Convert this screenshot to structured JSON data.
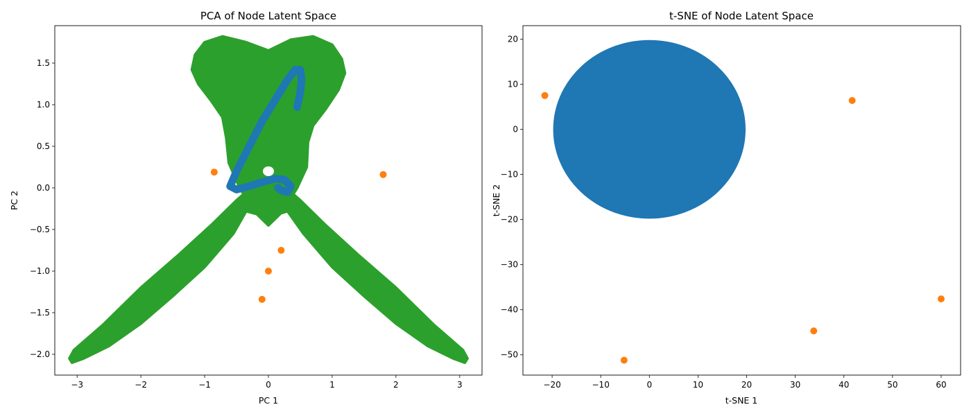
{
  "chart_data": [
    {
      "type": "scatter",
      "title": "PCA of Node Latent Space",
      "xlabel": "PC 1",
      "ylabel": "PC 2",
      "xlim": [
        -3.35,
        3.35
      ],
      "ylim": [
        -2.25,
        1.95
      ],
      "xticks": [
        -3,
        -2,
        -1,
        0,
        1,
        2,
        3
      ],
      "yticks": [
        -2.0,
        -1.5,
        -1.0,
        -0.5,
        0.0,
        0.5,
        1.0,
        1.5
      ],
      "xtick_labels": [
        "−3",
        "−2",
        "−1",
        "0",
        "1",
        "2",
        "3"
      ],
      "ytick_labels": [
        "−2.0",
        "−1.5",
        "−1.0",
        "−0.5",
        "0.0",
        "0.5",
        "1.0",
        "1.5"
      ],
      "grid": false,
      "series": [
        {
          "color": "#2ca02c",
          "marker": "dense-filled-region",
          "regions": {
            "upper_heart": [
              [
                0,
                1.65
              ],
              [
                0.35,
                1.78
              ],
              [
                0.7,
                1.82
              ],
              [
                1.0,
                1.72
              ],
              [
                1.15,
                1.55
              ],
              [
                1.2,
                1.38
              ],
              [
                1.1,
                1.18
              ],
              [
                0.9,
                0.95
              ],
              [
                0.7,
                0.75
              ],
              [
                0.62,
                0.55
              ],
              [
                0.6,
                0.25
              ],
              [
                0.45,
                0.0
              ],
              [
                0.2,
                -0.3
              ],
              [
                0,
                -0.45
              ],
              [
                -0.2,
                -0.3
              ],
              [
                -0.45,
                0.0
              ],
              [
                -0.62,
                0.3
              ],
              [
                -0.66,
                0.6
              ],
              [
                -0.72,
                0.85
              ],
              [
                -0.9,
                1.05
              ],
              [
                -1.1,
                1.25
              ],
              [
                -1.2,
                1.42
              ],
              [
                -1.15,
                1.6
              ],
              [
                -1.0,
                1.75
              ],
              [
                -0.72,
                1.82
              ],
              [
                -0.35,
                1.75
              ],
              [
                0,
                1.65
              ]
            ],
            "left_arm": [
              [
                -0.35,
                -0.28
              ],
              [
                -0.55,
                -0.55
              ],
              [
                -1.0,
                -0.95
              ],
              [
                -1.5,
                -1.3
              ],
              [
                -2.0,
                -1.63
              ],
              [
                -2.5,
                -1.9
              ],
              [
                -2.9,
                -2.05
              ],
              [
                -3.08,
                -2.1
              ],
              [
                -3.12,
                -2.05
              ],
              [
                -3.05,
                -1.95
              ],
              [
                -2.6,
                -1.65
              ],
              [
                -2.0,
                -1.2
              ],
              [
                -1.4,
                -0.8
              ],
              [
                -0.9,
                -0.45
              ],
              [
                -0.5,
                -0.15
              ],
              [
                -0.2,
                0.05
              ],
              [
                0,
                0.05
              ],
              [
                0.15,
                -0.05
              ],
              [
                0.0,
                -0.35
              ],
              [
                -0.35,
                -0.28
              ]
            ],
            "right_arm": [
              [
                0.3,
                -0.28
              ],
              [
                0.55,
                -0.55
              ],
              [
                1.0,
                -0.95
              ],
              [
                1.5,
                -1.3
              ],
              [
                2.0,
                -1.63
              ],
              [
                2.5,
                -1.9
              ],
              [
                2.9,
                -2.05
              ],
              [
                3.08,
                -2.1
              ],
              [
                3.12,
                -2.05
              ],
              [
                3.05,
                -1.95
              ],
              [
                2.6,
                -1.65
              ],
              [
                2.0,
                -1.2
              ],
              [
                1.4,
                -0.8
              ],
              [
                0.9,
                -0.45
              ],
              [
                0.5,
                -0.15
              ],
              [
                0.2,
                0.05
              ],
              [
                0,
                0.05
              ],
              [
                -0.15,
                -0.05
              ],
              [
                0.0,
                -0.35
              ],
              [
                0.3,
                -0.28
              ]
            ],
            "hole_center": [
              [
                0,
                0.2
              ],
              [
                0.1,
                0.22
              ]
            ]
          }
        },
        {
          "color": "#1f77b4",
          "marker": "curve",
          "points": [
            [
              0.45,
              0.97
            ],
            [
              0.5,
              1.15
            ],
            [
              0.52,
              1.3
            ],
            [
              0.5,
              1.42
            ],
            [
              0.42,
              1.42
            ],
            [
              0.3,
              1.3
            ],
            [
              0.1,
              1.05
            ],
            [
              -0.1,
              0.8
            ],
            [
              -0.3,
              0.5
            ],
            [
              -0.5,
              0.2
            ],
            [
              -0.6,
              0.02
            ],
            [
              -0.5,
              -0.02
            ],
            [
              -0.3,
              0.02
            ],
            [
              -0.1,
              0.07
            ],
            [
              0.1,
              0.11
            ],
            [
              0.25,
              0.1
            ],
            [
              0.35,
              0.02
            ],
            [
              0.3,
              -0.05
            ],
            [
              0.2,
              -0.03
            ],
            [
              0.15,
              0.0
            ]
          ]
        },
        {
          "color": "#ff7f0e",
          "marker": "o",
          "points": [
            [
              -0.85,
              0.19
            ],
            [
              1.8,
              0.16
            ],
            [
              0.2,
              -0.75
            ],
            [
              0.0,
              -1.0
            ],
            [
              -0.1,
              -1.34
            ]
          ]
        }
      ]
    },
    {
      "type": "scatter",
      "title": "t-SNE of Node Latent Space",
      "xlabel": "t-SNE 1",
      "ylabel": "t-SNE 2",
      "xlim": [
        -26.0,
        64.0
      ],
      "ylim": [
        -54.5,
        23.0
      ],
      "xticks": [
        -20,
        -10,
        0,
        10,
        20,
        30,
        40,
        50,
        60
      ],
      "yticks": [
        -50,
        -40,
        -30,
        -20,
        -10,
        0,
        10,
        20
      ],
      "xtick_labels": [
        "−20",
        "−10",
        "0",
        "10",
        "20",
        "30",
        "40",
        "50",
        "60"
      ],
      "ytick_labels": [
        "−50",
        "−40",
        "−30",
        "−20",
        "−10",
        "0",
        "10",
        "20"
      ],
      "grid": false,
      "series": [
        {
          "color": "#1f77b4",
          "marker": "dense-filled-disk",
          "center": [
            0,
            0
          ],
          "radius": 19.5
        },
        {
          "color": "#ff7f0e",
          "marker": "o",
          "points": [
            [
              -21.5,
              7.5
            ],
            [
              41.7,
              6.4
            ],
            [
              60.0,
              -37.6
            ],
            [
              33.8,
              -44.7
            ],
            [
              -5.2,
              -51.2
            ]
          ]
        }
      ]
    }
  ]
}
